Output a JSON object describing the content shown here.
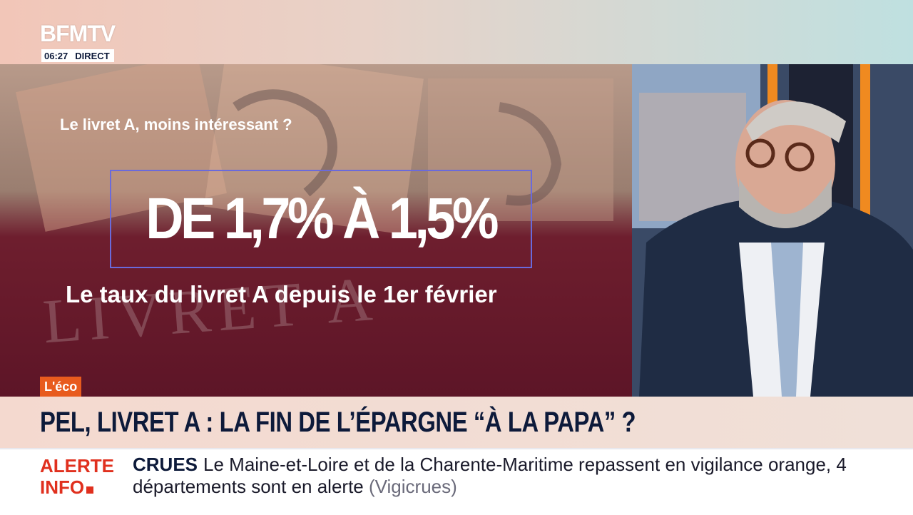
{
  "header": {
    "logo": "BFMTV",
    "time": "06:27",
    "status": "DIRECT"
  },
  "graphic": {
    "background_text": "LIVRET A",
    "kicker": "Le livret A, moins intéressant ?",
    "headline": "DE 1,7% À 1,5%",
    "caption": "Le taux du livret A depuis le 1er février"
  },
  "banner": {
    "tag": "L'éco",
    "title": "PEL, LIVRET A : LA FIN DE L’ÉPARGNE “À LA PAPA” ?"
  },
  "ticker": {
    "label_line1": "ALERTE",
    "label_line2": "INFO",
    "topic": "CRUES",
    "text": "Le Maine-et-Loire et de la Charente-Maritime repassent en vigilance orange, 4 départements sont en alerte",
    "source": "(Vigicrues)"
  }
}
